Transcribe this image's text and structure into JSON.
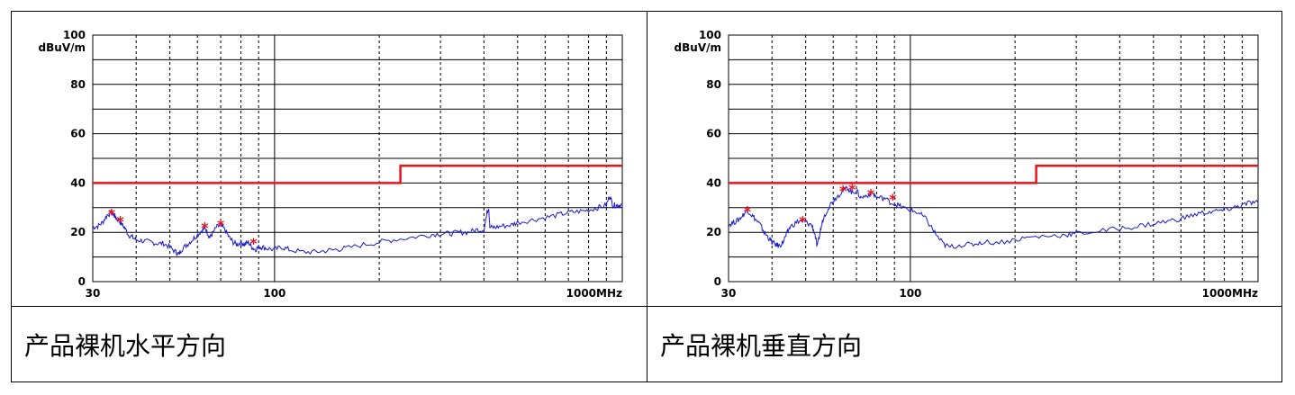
{
  "chart_data": [
    {
      "type": "line",
      "ylabel": "dBuV/m",
      "xscale": "log",
      "xlim": [
        30,
        1000
      ],
      "ylim": [
        0,
        100
      ],
      "y_ticks": [
        0,
        20,
        40,
        60,
        80,
        100
      ],
      "x_ticks": [
        {
          "value": 30,
          "label": "30"
        },
        {
          "value": 100,
          "label": "100"
        },
        {
          "value": 1000,
          "label": "1000MHz"
        }
      ],
      "grid": true,
      "limit_line": {
        "color": "#e8141b",
        "segments": [
          [
            30,
            40
          ],
          [
            230,
            40
          ],
          [
            230,
            47
          ],
          [
            1000,
            47
          ]
        ]
      },
      "series": [
        {
          "color": "#1a1acf",
          "points": [
            [
              30,
              22
            ],
            [
              31,
              22.5
            ],
            [
              32,
              24
            ],
            [
              33,
              27
            ],
            [
              34,
              28
            ],
            [
              34.5,
              27
            ],
            [
              35,
              26
            ],
            [
              36,
              24
            ],
            [
              37,
              22
            ],
            [
              38,
              19
            ],
            [
              39,
              18
            ],
            [
              40,
              17
            ],
            [
              42,
              16.5
            ],
            [
              44,
              16
            ],
            [
              46,
              15.5
            ],
            [
              48,
              15.5
            ],
            [
              50,
              14
            ],
            [
              52,
              12
            ],
            [
              53,
              11
            ],
            [
              54,
              13
            ],
            [
              56,
              15
            ],
            [
              58,
              17
            ],
            [
              60,
              19
            ],
            [
              62,
              21
            ],
            [
              63,
              22
            ],
            [
              64,
              20
            ],
            [
              65,
              18
            ],
            [
              66,
              19
            ],
            [
              68,
              22
            ],
            [
              70,
              23
            ],
            [
              72,
              21
            ],
            [
              74,
              18
            ],
            [
              76,
              16
            ],
            [
              78,
              15
            ],
            [
              80,
              16
            ],
            [
              82,
              15
            ],
            [
              84,
              16
            ],
            [
              86,
              14
            ],
            [
              88,
              13
            ],
            [
              90,
              14
            ],
            [
              92,
              14
            ],
            [
              95,
              13.5
            ],
            [
              100,
              13
            ],
            [
              105,
              14
            ],
            [
              110,
              13
            ],
            [
              120,
              12
            ],
            [
              130,
              12
            ],
            [
              140,
              12.5
            ],
            [
              150,
              13
            ],
            [
              160,
              13.5
            ],
            [
              180,
              15
            ],
            [
              200,
              16
            ],
            [
              220,
              17
            ],
            [
              250,
              18
            ],
            [
              280,
              19
            ],
            [
              300,
              19.5
            ],
            [
              320,
              19.5
            ],
            [
              340,
              20
            ],
            [
              360,
              20
            ],
            [
              380,
              21
            ],
            [
              400,
              21
            ],
            [
              410,
              29
            ],
            [
              413,
              30
            ],
            [
              416,
              22
            ],
            [
              430,
              22
            ],
            [
              450,
              22.5
            ],
            [
              480,
              23
            ],
            [
              500,
              24
            ],
            [
              550,
              25
            ],
            [
              600,
              26
            ],
            [
              650,
              27
            ],
            [
              700,
              28
            ],
            [
              750,
              28.5
            ],
            [
              800,
              29
            ],
            [
              850,
              30
            ],
            [
              900,
              31
            ],
            [
              920,
              35
            ],
            [
              940,
              31
            ],
            [
              960,
              31
            ],
            [
              980,
              31
            ],
            [
              1000,
              31
            ]
          ]
        }
      ],
      "markers": [
        [
          34,
          28
        ],
        [
          36,
          25
        ],
        [
          63,
          22.5
        ],
        [
          70,
          23.5
        ],
        [
          87,
          16
        ]
      ]
    },
    {
      "type": "line",
      "ylabel": "dBuV/m",
      "xscale": "log",
      "xlim": [
        30,
        1000
      ],
      "ylim": [
        0,
        100
      ],
      "y_ticks": [
        0,
        20,
        40,
        60,
        80,
        100
      ],
      "x_ticks": [
        {
          "value": 30,
          "label": "30"
        },
        {
          "value": 100,
          "label": "100"
        },
        {
          "value": 1000,
          "label": "1000MHz"
        }
      ],
      "grid": true,
      "limit_line": {
        "color": "#e8141b",
        "segments": [
          [
            30,
            40
          ],
          [
            230,
            40
          ],
          [
            230,
            47
          ],
          [
            1000,
            47
          ]
        ]
      },
      "series": [
        {
          "color": "#1a1acf",
          "points": [
            [
              30,
              23
            ],
            [
              31,
              24
            ],
            [
              32,
              25
            ],
            [
              33,
              27
            ],
            [
              34,
              29
            ],
            [
              35,
              27
            ],
            [
              36,
              25
            ],
            [
              37,
              23
            ],
            [
              38,
              20
            ],
            [
              39,
              18
            ],
            [
              40,
              16
            ],
            [
              41,
              15
            ],
            [
              42,
              14.5
            ],
            [
              43,
              16
            ],
            [
              44,
              19
            ],
            [
              45,
              22
            ],
            [
              47,
              24
            ],
            [
              49,
              25
            ],
            [
              50,
              24
            ],
            [
              52,
              23
            ],
            [
              53,
              20
            ],
            [
              54,
              14
            ],
            [
              55,
              20
            ],
            [
              56,
              25
            ],
            [
              58,
              30
            ],
            [
              60,
              33
            ],
            [
              62,
              35
            ],
            [
              64,
              37
            ],
            [
              66,
              38
            ],
            [
              68,
              36
            ],
            [
              70,
              37
            ],
            [
              72,
              34
            ],
            [
              75,
              35
            ],
            [
              78,
              36
            ],
            [
              80,
              34
            ],
            [
              84,
              34
            ],
            [
              88,
              32
            ],
            [
              92,
              31
            ],
            [
              95,
              30
            ],
            [
              100,
              29
            ],
            [
              105,
              28
            ],
            [
              110,
              26
            ],
            [
              115,
              22
            ],
            [
              120,
              18
            ],
            [
              125,
              15
            ],
            [
              130,
              14
            ],
            [
              140,
              15
            ],
            [
              150,
              15
            ],
            [
              160,
              16
            ],
            [
              180,
              16
            ],
            [
              200,
              17
            ],
            [
              220,
              18
            ],
            [
              250,
              18.5
            ],
            [
              280,
              19
            ],
            [
              300,
              19.5
            ],
            [
              350,
              20.5
            ],
            [
              400,
              21.5
            ],
            [
              450,
              22.5
            ],
            [
              500,
              23.5
            ],
            [
              550,
              24.5
            ],
            [
              600,
              25.5
            ],
            [
              650,
              27
            ],
            [
              700,
              28
            ],
            [
              750,
              28.5
            ],
            [
              800,
              29
            ],
            [
              850,
              30
            ],
            [
              900,
              31
            ],
            [
              950,
              32
            ],
            [
              1000,
              32
            ]
          ]
        }
      ],
      "markers": [
        [
          34,
          29
        ],
        [
          49,
          25
        ],
        [
          64,
          37.5
        ],
        [
          68,
          38
        ],
        [
          77,
          36
        ],
        [
          89,
          34
        ]
      ]
    }
  ],
  "captions": [
    "产品裸机水平方向",
    "产品裸机垂直方向"
  ]
}
